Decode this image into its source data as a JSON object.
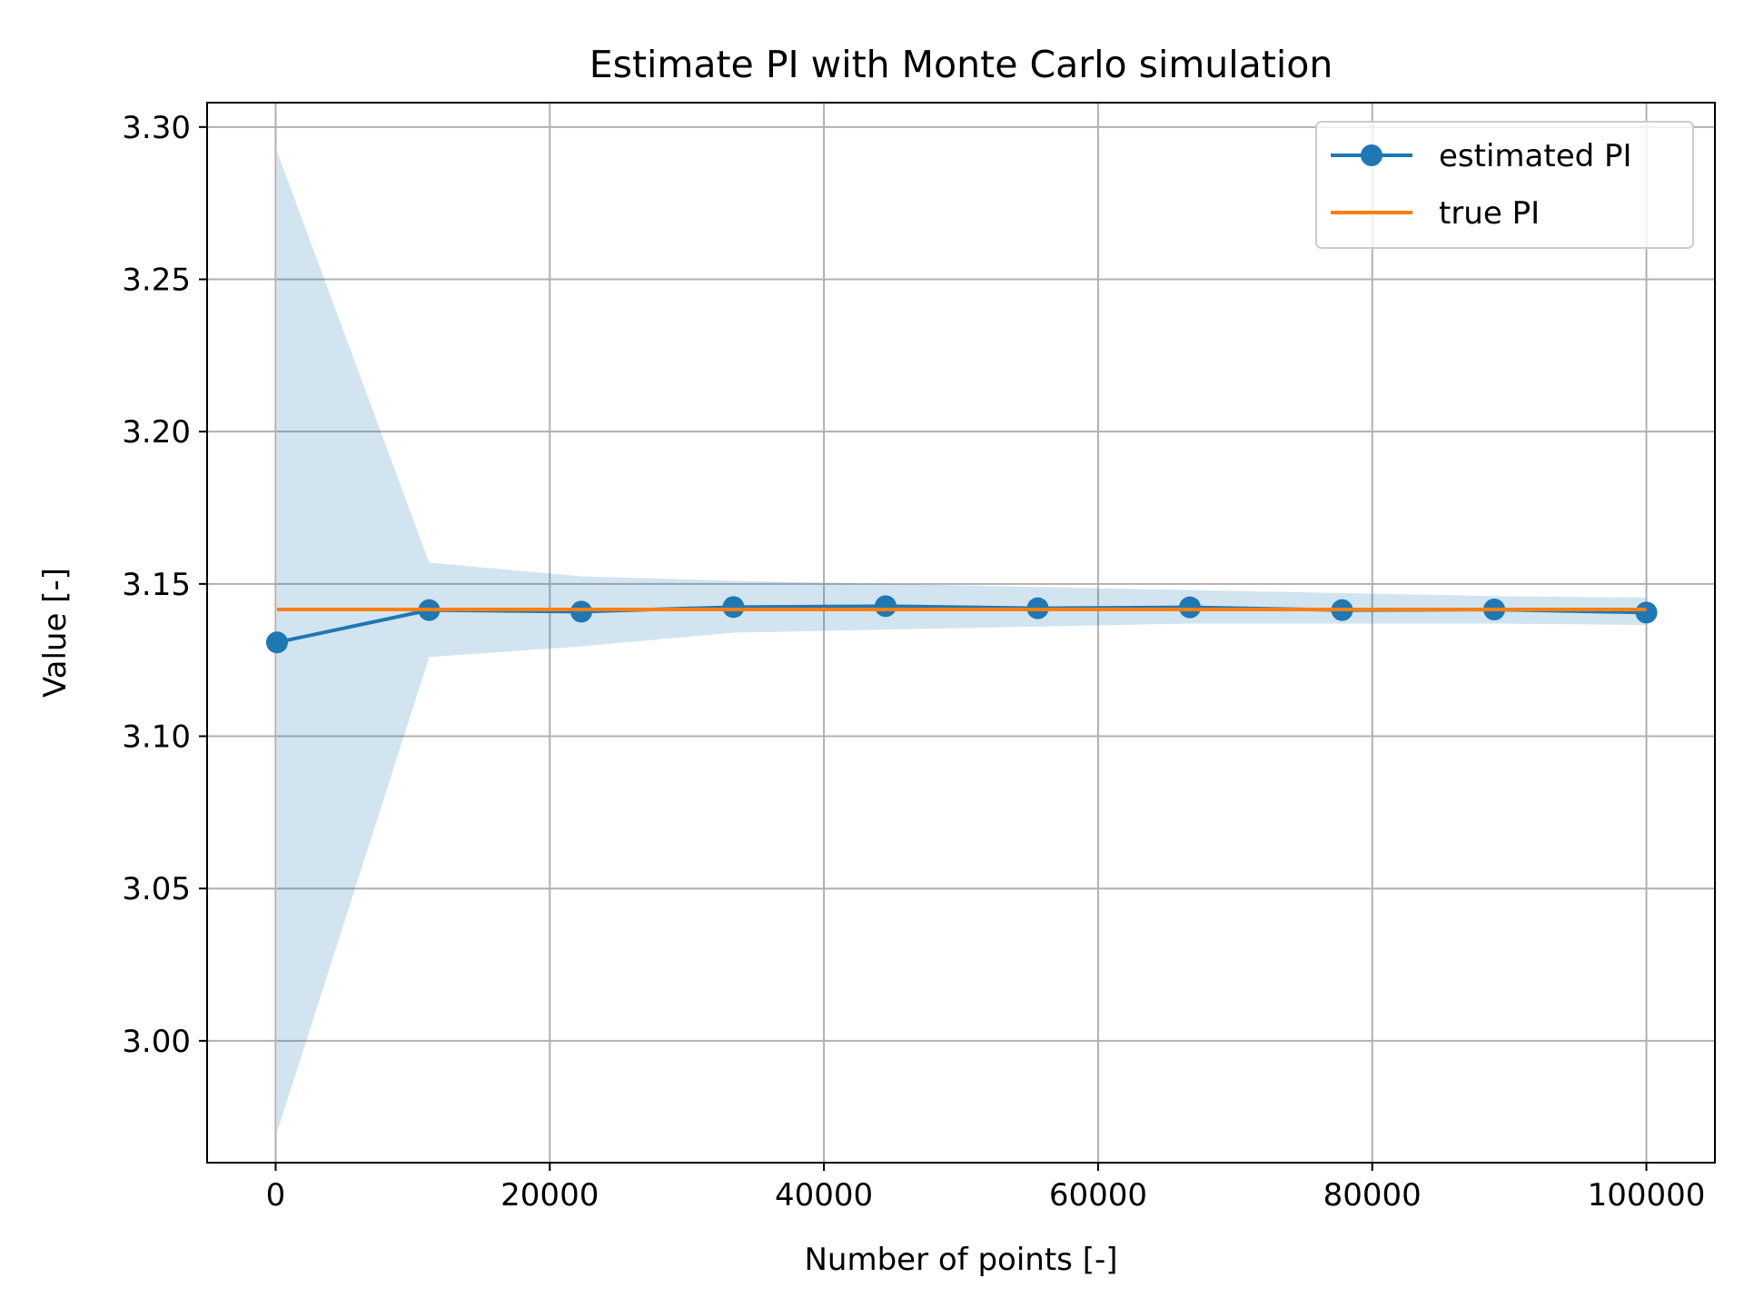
{
  "chart_data": {
    "type": "line",
    "title": "Estimate PI with Monte Carlo simulation",
    "xlabel": "Number of points [-]",
    "ylabel": "Value [-]",
    "xlim": [
      -5000,
      105000
    ],
    "ylim": [
      2.96,
      3.308
    ],
    "xticks": [
      0,
      20000,
      40000,
      60000,
      80000,
      100000
    ],
    "yticks": [
      3.0,
      3.05,
      3.1,
      3.15,
      3.2,
      3.25,
      3.3
    ],
    "xtick_labels": [
      "0",
      "20000",
      "40000",
      "60000",
      "80000",
      "100000"
    ],
    "ytick_labels": [
      "3.00",
      "3.05",
      "3.10",
      "3.15",
      "3.20",
      "3.25",
      "3.30"
    ],
    "grid": true,
    "legend_position": "top-right",
    "x": [
      100,
      11200,
      22300,
      33400,
      44500,
      55600,
      66700,
      77800,
      88900,
      100000
    ],
    "series": [
      {
        "name": "estimated PI",
        "color": "#1f77b4",
        "marker": "circle",
        "values": [
          3.1308,
          3.1414,
          3.1409,
          3.1424,
          3.1427,
          3.142,
          3.1423,
          3.1414,
          3.1416,
          3.1406
        ]
      },
      {
        "name": "true PI",
        "color": "#ff7f0e",
        "marker": "none",
        "values": [
          3.14159,
          3.14159,
          3.14159,
          3.14159,
          3.14159,
          3.14159,
          3.14159,
          3.14159,
          3.14159,
          3.14159
        ]
      }
    ],
    "confidence_band": {
      "color": "#1f77b4",
      "opacity": 0.2,
      "upper": [
        3.292,
        3.157,
        3.1525,
        3.151,
        3.15,
        3.149,
        3.148,
        3.147,
        3.146,
        3.1455
      ],
      "lower": [
        2.97,
        3.126,
        3.1295,
        3.134,
        3.135,
        3.136,
        3.137,
        3.137,
        3.137,
        3.1365
      ]
    }
  }
}
